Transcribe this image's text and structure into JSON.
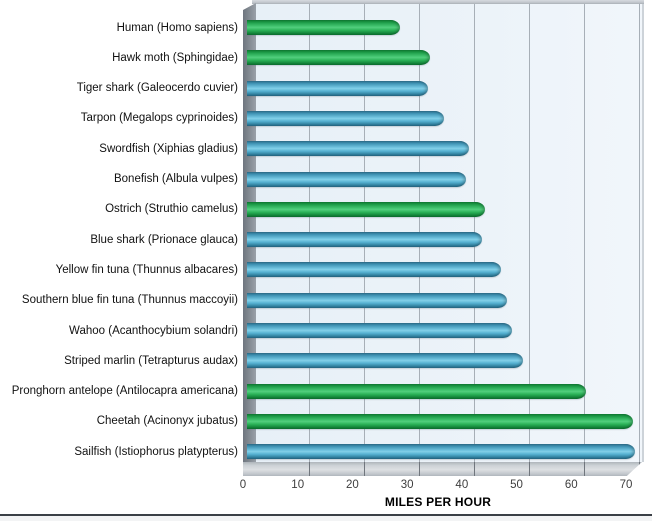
{
  "chart_data": {
    "type": "bar",
    "orientation": "horizontal",
    "title": "",
    "xlabel": "MILES PER HOUR",
    "ylabel": "",
    "xlim": [
      0,
      71
    ],
    "x_ticks": [
      0,
      10,
      20,
      30,
      40,
      50,
      60,
      70
    ],
    "grid": "vertical-gridlines-on",
    "legend_position": "none",
    "style": "3d-cylinder-bars, light-blue back wall, gray side wall and floor",
    "categories": [
      "Human (Homo sapiens)",
      "Hawk moth (Sphingidae)",
      "Tiger shark (Galeocerdo cuvier)",
      "Tarpon (Megalops cyprinoides)",
      "Swordfish (Xiphias gladius)",
      "Bonefish (Albula vulpes)",
      "Ostrich (Struthio camelus)",
      "Blue shark (Prionace glauca)",
      "Yellow fin tuna (Thunnus albacares)",
      "Southern blue fin tuna (Thunnus maccoyii)",
      "Wahoo (Acanthocybium solandri)",
      "Striped marlin (Tetrapturus audax)",
      "Pronghorn antelope (Antilocapra americana)",
      "Cheetah (Acinonyx jubatus)",
      "Sailfish (Istiophorus platypterus)"
    ],
    "values": [
      28,
      33.5,
      33,
      36,
      40.5,
      40,
      43.5,
      43,
      46.5,
      47.5,
      48.5,
      50.5,
      62,
      70.5,
      71
    ],
    "bar_color_keys": [
      "green",
      "green",
      "blue",
      "blue",
      "blue",
      "blue",
      "green",
      "blue",
      "blue",
      "blue",
      "blue",
      "blue",
      "green",
      "green",
      "blue"
    ],
    "palette": {
      "green": "#2bb258",
      "blue": "#55b1d1",
      "plot_background": "#ecf3f9",
      "gridline": "#a7afb7",
      "wall_gray": "#868d95",
      "floor_gray": "#cdd2d6",
      "bottom_border": "#3b4046"
    }
  }
}
